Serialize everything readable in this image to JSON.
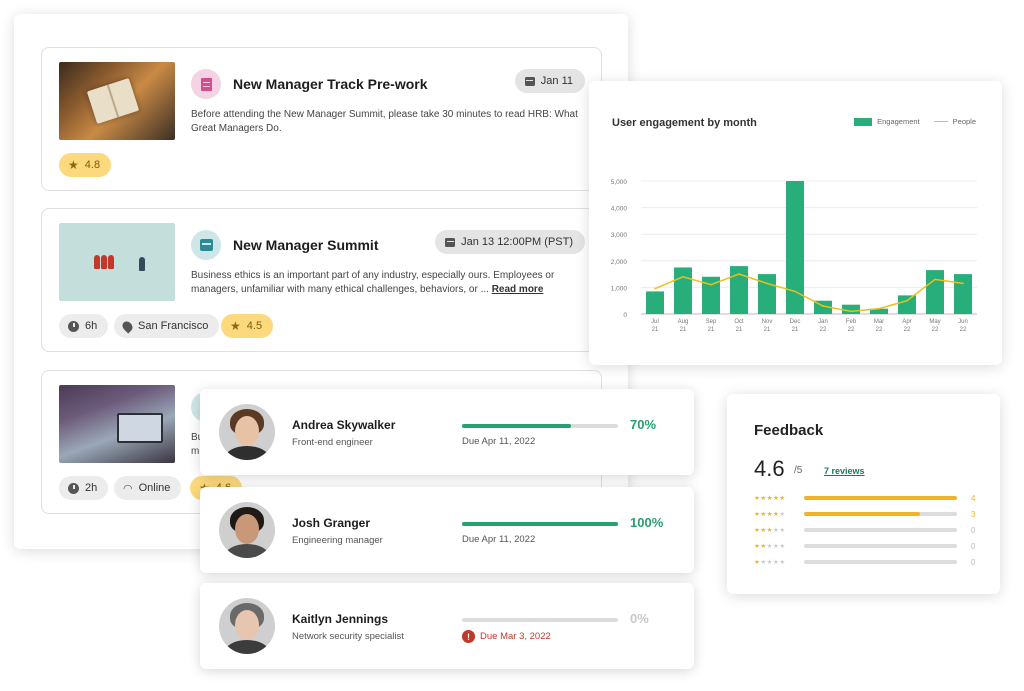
{
  "events": [
    {
      "title": "New Manager Track Pre-work",
      "description": "Before attending the New Manager Summit, please take 30 minutes to read HRB: What Great Managers Do.",
      "read_more": "",
      "date": "Jan 11",
      "icon": "document-icon",
      "chips": [],
      "rating": "4.8"
    },
    {
      "title": "New Manager Summit",
      "description": "Business ethics is an important part of any industry, especially ours. Employees or managers, unfamiliar with many ethical challenges, behaviors, or ...",
      "read_more": "Read more",
      "date": "Jan 13 12:00PM (PST)",
      "icon": "calendar-icon",
      "chips": [
        "6h",
        "San Francisco"
      ],
      "rating": "4.5"
    },
    {
      "title_partial": "",
      "desc_partial_1": "Bu",
      "desc_partial_2": "m",
      "chips": [
        "2h",
        "Online"
      ],
      "rating_partial": "4.6"
    }
  ],
  "chart": {
    "title": "User engagement by month",
    "legend": [
      "Engagement",
      "People"
    ]
  },
  "chart_data": {
    "type": "bar",
    "title": "User engagement by month",
    "categories": [
      "Jul 21",
      "Aug 21",
      "Sep 21",
      "Oct 21",
      "Nov 21",
      "Dec 21",
      "Jan 22",
      "Feb 22",
      "Mar 22",
      "Apr 22",
      "May 22",
      "Jun 22"
    ],
    "x_tick_labels": [
      [
        "Jul",
        "21"
      ],
      [
        "Aug",
        "21"
      ],
      [
        "Sep",
        "21"
      ],
      [
        "Oct",
        "21"
      ],
      [
        "Nov",
        "21"
      ],
      [
        "Dec",
        "21"
      ],
      [
        "Jan",
        "22"
      ],
      [
        "Feb",
        "22"
      ],
      [
        "Mar",
        "22"
      ],
      [
        "Apr",
        "22"
      ],
      [
        "May",
        "22"
      ],
      [
        "Jun",
        "22"
      ]
    ],
    "y_ticks": [
      "0",
      "1,000",
      "2,000",
      "3,000",
      "4,000",
      "5,000"
    ],
    "ylim": [
      0,
      5000
    ],
    "series": [
      {
        "name": "Engagement",
        "type": "bar",
        "color": "#27ae7a",
        "values": [
          850,
          1750,
          1400,
          1800,
          1500,
          5000,
          500,
          350,
          200,
          700,
          1650,
          1500
        ]
      },
      {
        "name": "People",
        "type": "line",
        "color": "#e8c11a",
        "values": [
          950,
          1400,
          1100,
          1500,
          1150,
          850,
          300,
          100,
          200,
          500,
          1300,
          1150
        ]
      }
    ],
    "legend_position": "top-right",
    "grid": true
  },
  "people": [
    {
      "name": "Andrea Skywalker",
      "role": "Front-end engineer",
      "progress": 0.7,
      "pct_label": "70%",
      "due": "Due Apr 11, 2022",
      "late": false
    },
    {
      "name": "Josh Granger",
      "role": "Engineering manager",
      "progress": 1.0,
      "pct_label": "100%",
      "due": "Due Apr 11, 2022",
      "late": false
    },
    {
      "name": "Kaitlyn Jennings",
      "role": "Network security specialist",
      "progress": 0.0,
      "pct_label": "0%",
      "due": "Due Mar 3, 2022",
      "late": true
    }
  ],
  "feedback": {
    "title": "Feedback",
    "score": "4.6",
    "max": "/5",
    "reviews": "7 reviews",
    "rows": [
      {
        "stars": 5,
        "count": "4",
        "fill": 1.0
      },
      {
        "stars": 4,
        "count": "3",
        "fill": 0.76
      },
      {
        "stars": 3,
        "count": "0",
        "fill": 0
      },
      {
        "stars": 2,
        "count": "0",
        "fill": 0
      },
      {
        "stars": 1,
        "count": "0",
        "fill": 0
      }
    ]
  },
  "colors": {
    "accent": "#27a070",
    "rating": "#fcd97d",
    "star": "#f0b428",
    "late": "#c0392b"
  }
}
